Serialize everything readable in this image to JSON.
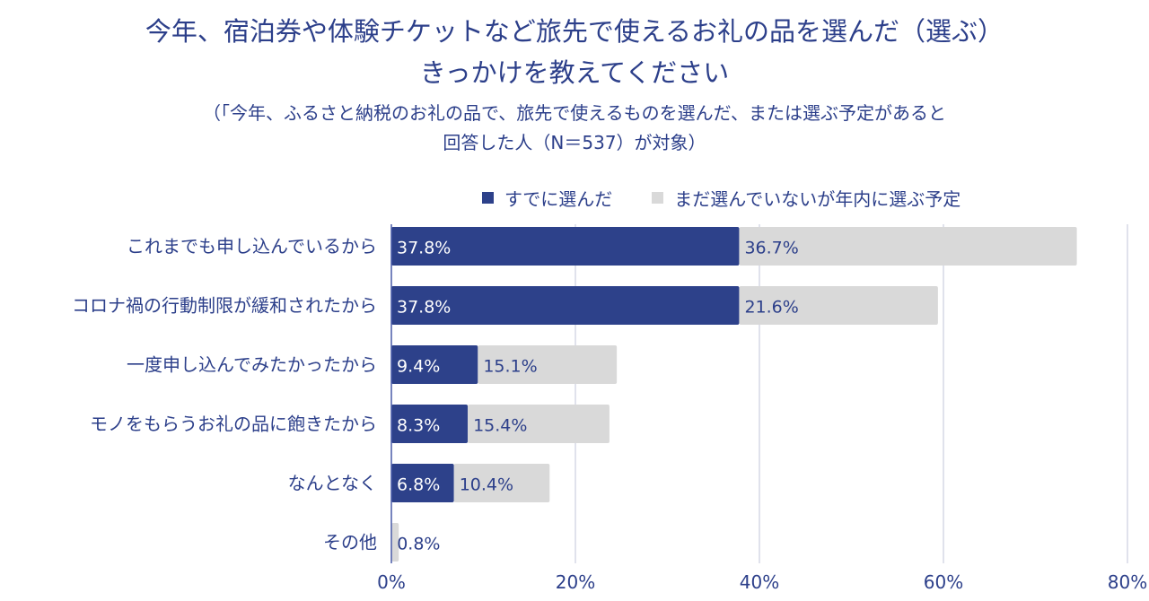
{
  "chart_data": {
    "type": "bar",
    "orientation": "horizontal",
    "stacked": true,
    "title": "今年、宿泊券や体験チケットなど旅先で使えるお礼の品を選んだ（選ぶ）きっかけを教えてください",
    "title_lines": [
      "今年、宿泊券や体験チケットなど旅先で使えるお礼の品を選んだ（選ぶ）",
      "きっかけを教えてください"
    ],
    "subtitle_lines": [
      "（「今年、ふるさと納税のお礼の品で、旅先で使えるものを選んだ、または選ぶ予定があると",
      "回答した人（N＝537）が対象）"
    ],
    "categories": [
      "これまでも申し込んでいるから",
      "コロナ禍の行動制限が緩和されたから",
      "一度申し込んでみたかったから",
      "モノをもらうお礼の品に飽きたから",
      "なんとなく",
      "その他"
    ],
    "series": [
      {
        "name": "すでに選んだ",
        "color": "#2d418a",
        "values": [
          37.8,
          37.8,
          9.4,
          8.3,
          6.8,
          0
        ],
        "labels": [
          "37.8%",
          "37.8%",
          "9.4%",
          "8.3%",
          "6.8%",
          ""
        ]
      },
      {
        "name": "まだ選んでいないが年内に選ぶ予定",
        "color": "#d9d9d9",
        "values": [
          36.7,
          21.6,
          15.1,
          15.4,
          10.4,
          0.8
        ],
        "labels": [
          "36.7%",
          "21.6%",
          "15.1%",
          "15.4%",
          "10.4%",
          "0.8%"
        ]
      }
    ],
    "xlim": [
      0,
      80
    ],
    "xticks": [
      "0%",
      "20%",
      "40%",
      "60%",
      "80%"
    ],
    "xtick_values": [
      0,
      20,
      40,
      60,
      80
    ],
    "grid": true,
    "legend_position": "top"
  },
  "colors": {
    "text": "#2c3f8a",
    "grid": "#d5d8e6"
  }
}
